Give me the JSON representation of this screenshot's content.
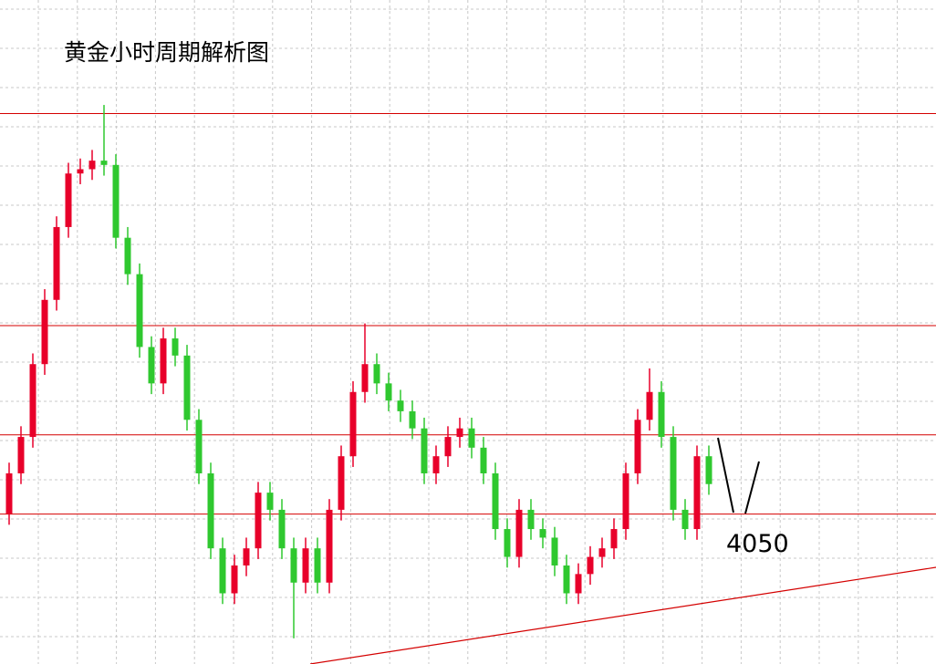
{
  "chart_data": {
    "type": "candlestick",
    "title": "黄金小时周期解析图",
    "ylim": [
      3980,
      4290
    ],
    "up_color": "#e8002a",
    "down_color": "#2fc82f",
    "level_color": "#d40000",
    "levels": [
      4237,
      4138,
      4087,
      4050
    ],
    "open": [
      4050,
      4069,
      4086,
      4120,
      4150,
      4184,
      4209,
      4211,
      4215,
      4213,
      4179,
      4162,
      4128,
      4111,
      4132,
      4124,
      4094,
      4069,
      4034,
      4013,
      4026,
      4034,
      4060,
      4052,
      4034,
      4018,
      4034,
      4018,
      4052,
      4077,
      4107,
      4120,
      4111,
      4103,
      4098,
      4090,
      4069,
      4077,
      4086,
      4090,
      4081,
      4069,
      4043,
      4030,
      4052,
      4043,
      4039,
      4026,
      4013,
      4022,
      4030,
      4034,
      4043,
      4069,
      4094,
      4107,
      4086,
      4052,
      4043,
      4077
    ],
    "high": [
      4074,
      4091,
      4125,
      4155,
      4189,
      4214,
      4216,
      4220,
      4241,
      4218,
      4184,
      4167,
      4133,
      4137,
      4137,
      4129,
      4099,
      4074,
      4039,
      4031,
      4039,
      4065,
      4065,
      4057,
      4039,
      4039,
      4039,
      4057,
      4082,
      4112,
      4139,
      4125,
      4116,
      4108,
      4103,
      4095,
      4082,
      4091,
      4095,
      4095,
      4086,
      4074,
      4048,
      4057,
      4057,
      4048,
      4044,
      4031,
      4027,
      4035,
      4039,
      4048,
      4074,
      4099,
      4118,
      4112,
      4091,
      4057,
      4082,
      4082
    ],
    "low": [
      4045,
      4064,
      4081,
      4115,
      4145,
      4179,
      4204,
      4206,
      4208,
      4174,
      4157,
      4123,
      4106,
      4106,
      4119,
      4089,
      4064,
      4029,
      4008,
      4008,
      4021,
      4029,
      4047,
      4029,
      3992,
      4013,
      4013,
      4013,
      4047,
      4072,
      4102,
      4106,
      4098,
      4093,
      4085,
      4064,
      4064,
      4072,
      4081,
      4076,
      4064,
      4038,
      4025,
      4025,
      4038,
      4034,
      4021,
      4008,
      4008,
      4017,
      4025,
      4029,
      4038,
      4064,
      4089,
      4081,
      4047,
      4038,
      4038,
      4059
    ],
    "close": [
      4069,
      4086,
      4120,
      4150,
      4184,
      4209,
      4211,
      4215,
      4213,
      4179,
      4162,
      4128,
      4111,
      4132,
      4124,
      4094,
      4069,
      4034,
      4013,
      4026,
      4034,
      4060,
      4052,
      4034,
      4018,
      4034,
      4018,
      4052,
      4077,
      4107,
      4120,
      4111,
      4103,
      4098,
      4090,
      4069,
      4077,
      4086,
      4090,
      4081,
      4069,
      4043,
      4030,
      4052,
      4043,
      4039,
      4026,
      4013,
      4022,
      4030,
      4034,
      4043,
      4069,
      4094,
      4107,
      4086,
      4052,
      4043,
      4077,
      4064
    ]
  }
}
